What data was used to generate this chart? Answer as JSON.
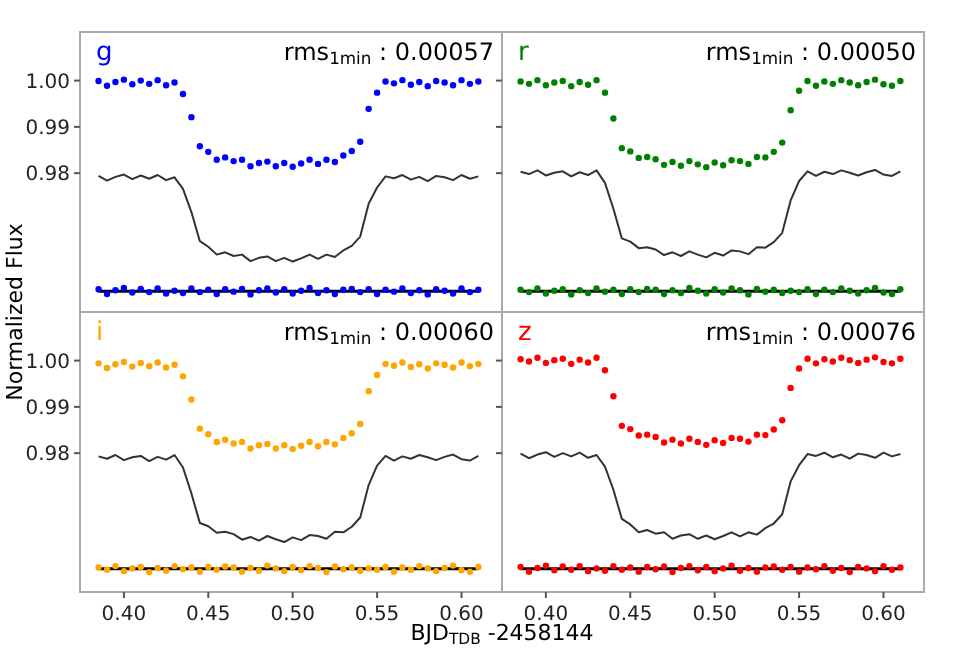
{
  "chart_data": [
    {
      "type": "scatter",
      "title": "g",
      "ylabel": "Normalized Flux",
      "annotations": [
        "rms$_{1min}$ : 0.00057"
      ],
      "xlim": [
        0.374,
        0.624
      ],
      "ylim": [
        0.95,
        1.0105
      ],
      "xticks": [
        {
          "value": 0.4,
          "label": null
        },
        {
          "value": 0.45,
          "label": null
        },
        {
          "value": 0.5,
          "label": null
        },
        {
          "value": 0.55,
          "label": null
        },
        {
          "value": 0.6,
          "label": null
        }
      ],
      "yticks": [
        {
          "value": 0.98,
          "label": "0.98"
        },
        {
          "value": 0.99,
          "label": "0.99"
        },
        {
          "value": 1.0,
          "label": "1.00"
        }
      ],
      "tick_labels": "y",
      "x": [
        0.385,
        0.39,
        0.395,
        0.4,
        0.405,
        0.41,
        0.415,
        0.42,
        0.425,
        0.43,
        0.435,
        0.44,
        0.445,
        0.45,
        0.455,
        0.46,
        0.465,
        0.47,
        0.475,
        0.48,
        0.485,
        0.49,
        0.495,
        0.5,
        0.505,
        0.51,
        0.515,
        0.52,
        0.525,
        0.53,
        0.535,
        0.54,
        0.545,
        0.55,
        0.555,
        0.56,
        0.565,
        0.57,
        0.575,
        0.58,
        0.585,
        0.59,
        0.595,
        0.6,
        0.605,
        0.61
      ],
      "ref_lines": [
        {
          "axis": "y",
          "value": 0.9545,
          "color": "#000000"
        }
      ],
      "series": [
        {
          "marker": "circle",
          "color": "#0000ff",
          "values": [
            0.9999,
            0.9989,
            0.9997,
            1.0002,
            0.9992,
            1.0,
            0.9993,
            1.0001,
            0.999,
            0.9996,
            0.9971,
            0.9921,
            0.9858,
            0.9846,
            0.9829,
            0.9834,
            0.9826,
            0.9829,
            0.9815,
            0.9822,
            0.9825,
            0.9815,
            0.9822,
            0.9814,
            0.9821,
            0.9829,
            0.982,
            0.9829,
            0.9824,
            0.9838,
            0.9848,
            0.9868,
            0.9939,
            0.9974,
            0.9998,
            0.9994,
            1.0001,
            0.9991,
            0.9997,
            0.9988,
            0.9999,
            0.9996,
            0.999,
            1.0001,
            0.9993,
            0.9998
          ]
        },
        {
          "type": "line",
          "color": "#333333",
          "values": [
            0.9794,
            0.9784,
            0.9792,
            0.9797,
            0.9787,
            0.9795,
            0.9788,
            0.9796,
            0.9785,
            0.9791,
            0.9766,
            0.9716,
            0.9653,
            0.9641,
            0.9624,
            0.9629,
            0.9621,
            0.9624,
            0.961,
            0.9617,
            0.962,
            0.961,
            0.9617,
            0.9609,
            0.9616,
            0.9624,
            0.9615,
            0.9624,
            0.9619,
            0.9633,
            0.9643,
            0.9663,
            0.9734,
            0.9769,
            0.9793,
            0.9789,
            0.9796,
            0.9786,
            0.9792,
            0.9783,
            0.9794,
            0.9791,
            0.9785,
            0.9796,
            0.9788,
            0.9793
          ]
        },
        {
          "marker": "circle",
          "color": "#0000ff",
          "values": [
            0.9549,
            0.9539,
            0.9547,
            0.9552,
            0.9542,
            0.955,
            0.9543,
            0.9551,
            0.954,
            0.9546,
            0.9541,
            0.9551,
            0.9543,
            0.9548,
            0.9539,
            0.9549,
            0.9544,
            0.955,
            0.9538,
            0.9547,
            0.9551,
            0.9542,
            0.9549,
            0.954,
            0.9546,
            0.9552,
            0.9541,
            0.9547,
            0.9539,
            0.9548,
            0.955,
            0.9543,
            0.9549,
            0.9539,
            0.9548,
            0.9544,
            0.9551,
            0.9541,
            0.9547,
            0.9538,
            0.9549,
            0.9546,
            0.954,
            0.9551,
            0.9543,
            0.9548
          ]
        }
      ]
    },
    {
      "type": "scatter",
      "title": "r",
      "annotations": [
        "rms$_{1min}$ : 0.00050"
      ],
      "xlim": [
        0.374,
        0.624
      ],
      "ylim": [
        0.95,
        1.0105
      ],
      "xticks": [
        {
          "value": 0.4,
          "label": null
        },
        {
          "value": 0.45,
          "label": null
        },
        {
          "value": 0.5,
          "label": null
        },
        {
          "value": 0.55,
          "label": null
        },
        {
          "value": 0.6,
          "label": null
        }
      ],
      "yticks": [
        {
          "value": 0.98,
          "label": null
        },
        {
          "value": 0.99,
          "label": null
        },
        {
          "value": 1.0,
          "label": null
        }
      ],
      "tick_labels": false,
      "x": [
        0.385,
        0.39,
        0.395,
        0.4,
        0.405,
        0.41,
        0.415,
        0.42,
        0.425,
        0.43,
        0.435,
        0.44,
        0.445,
        0.45,
        0.455,
        0.46,
        0.465,
        0.47,
        0.475,
        0.48,
        0.485,
        0.49,
        0.495,
        0.5,
        0.505,
        0.51,
        0.515,
        0.52,
        0.525,
        0.53,
        0.535,
        0.54,
        0.545,
        0.55,
        0.555,
        0.56,
        0.565,
        0.57,
        0.575,
        0.58,
        0.585,
        0.59,
        0.595,
        0.6,
        0.605,
        0.61
      ],
      "ref_lines": [
        {
          "axis": "y",
          "value": 0.9545,
          "color": "#000000"
        }
      ],
      "series": [
        {
          "marker": "circle",
          "color": "#008000",
          "values": [
            0.9998,
            0.9993,
            1.0001,
            0.999,
            0.9996,
            0.9999,
            0.9988,
            0.9997,
            0.9991,
            1.0001,
            0.9974,
            0.9918,
            0.9854,
            0.9847,
            0.9833,
            0.9835,
            0.983,
            0.9818,
            0.9824,
            0.9816,
            0.9826,
            0.9819,
            0.9813,
            0.9823,
            0.9817,
            0.9828,
            0.9826,
            0.982,
            0.9835,
            0.9834,
            0.9846,
            0.9866,
            0.9936,
            0.9978,
            0.9999,
            0.9989,
            0.9998,
            0.9993,
            1.0001,
            0.9996,
            0.999,
            0.9997,
            1.0002,
            0.9992,
            0.9989,
            0.9999
          ]
        },
        {
          "type": "line",
          "color": "#333333",
          "values": [
            0.9803,
            0.9798,
            0.9806,
            0.9795,
            0.9801,
            0.9804,
            0.9793,
            0.9802,
            0.9796,
            0.9806,
            0.9779,
            0.9723,
            0.9659,
            0.9652,
            0.9638,
            0.964,
            0.9635,
            0.9623,
            0.9629,
            0.9621,
            0.9631,
            0.9624,
            0.9618,
            0.9628,
            0.9622,
            0.9633,
            0.9631,
            0.9625,
            0.964,
            0.9639,
            0.9651,
            0.9671,
            0.9741,
            0.9783,
            0.9804,
            0.9794,
            0.9803,
            0.9798,
            0.9806,
            0.9801,
            0.9795,
            0.9802,
            0.9807,
            0.9797,
            0.9794,
            0.9804
          ]
        },
        {
          "marker": "circle",
          "color": "#008000",
          "values": [
            0.9548,
            0.9543,
            0.9551,
            0.954,
            0.9546,
            0.9549,
            0.9538,
            0.9547,
            0.9541,
            0.9551,
            0.9544,
            0.9548,
            0.9539,
            0.9549,
            0.9543,
            0.955,
            0.9548,
            0.9539,
            0.9547,
            0.9541,
            0.9552,
            0.9546,
            0.954,
            0.9549,
            0.9542,
            0.9551,
            0.9547,
            0.9538,
            0.955,
            0.9544,
            0.9548,
            0.9541,
            0.9546,
            0.9543,
            0.9549,
            0.9539,
            0.9548,
            0.9543,
            0.9551,
            0.9546,
            0.954,
            0.9547,
            0.9552,
            0.9542,
            0.9539,
            0.9549
          ]
        }
      ]
    },
    {
      "type": "scatter",
      "title": "i",
      "xlabel": "BJD$_{TDB}$-2458144",
      "annotations": [
        "rms$_{1min}$ : 0.00060"
      ],
      "xlim": [
        0.374,
        0.624
      ],
      "ylim": [
        0.95,
        1.0105
      ],
      "xticks": [
        {
          "value": 0.4,
          "label": "0.40"
        },
        {
          "value": 0.45,
          "label": "0.45"
        },
        {
          "value": 0.5,
          "label": "0.50"
        },
        {
          "value": 0.55,
          "label": "0.55"
        },
        {
          "value": 0.6,
          "label": "0.60"
        }
      ],
      "yticks": [
        {
          "value": 0.98,
          "label": "0.98"
        },
        {
          "value": 0.99,
          "label": "0.99"
        },
        {
          "value": 1.0,
          "label": "1.00"
        }
      ],
      "x": [
        0.385,
        0.39,
        0.395,
        0.4,
        0.405,
        0.41,
        0.415,
        0.42,
        0.425,
        0.43,
        0.435,
        0.44,
        0.445,
        0.45,
        0.455,
        0.46,
        0.465,
        0.47,
        0.475,
        0.48,
        0.485,
        0.49,
        0.495,
        0.5,
        0.505,
        0.51,
        0.515,
        0.52,
        0.525,
        0.53,
        0.535,
        0.54,
        0.545,
        0.55,
        0.555,
        0.56,
        0.565,
        0.57,
        0.575,
        0.58,
        0.585,
        0.59,
        0.595,
        0.6,
        0.605,
        0.61
      ],
      "ref_lines": [
        {
          "axis": "y",
          "value": 0.955,
          "color": "#000000"
        }
      ],
      "series": [
        {
          "marker": "circle",
          "color": "#ffa500",
          "values": [
            0.9994,
            0.9984,
            0.9992,
            0.9997,
            0.9987,
            0.9995,
            0.9988,
            0.9996,
            0.9985,
            0.9991,
            0.9966,
            0.9916,
            0.9853,
            0.9841,
            0.9824,
            0.9829,
            0.9821,
            0.9824,
            0.981,
            0.9817,
            0.982,
            0.981,
            0.9817,
            0.9809,
            0.9816,
            0.9824,
            0.9815,
            0.9824,
            0.9819,
            0.9833,
            0.9843,
            0.9863,
            0.9934,
            0.9969,
            0.9993,
            0.9989,
            0.9996,
            0.9986,
            0.9992,
            0.9983,
            0.9994,
            0.9991,
            0.9985,
            0.9996,
            0.9988,
            0.9993
          ]
        },
        {
          "type": "line",
          "color": "#333333",
          "values": [
            0.9793,
            0.9788,
            0.9796,
            0.9785,
            0.9791,
            0.9794,
            0.9783,
            0.9792,
            0.9786,
            0.9796,
            0.9769,
            0.9713,
            0.9649,
            0.9642,
            0.9628,
            0.963,
            0.9625,
            0.9613,
            0.9619,
            0.9611,
            0.9621,
            0.9614,
            0.9608,
            0.9618,
            0.9612,
            0.9623,
            0.9621,
            0.9615,
            0.963,
            0.9629,
            0.9641,
            0.9661,
            0.9731,
            0.9773,
            0.9794,
            0.9784,
            0.9793,
            0.9788,
            0.9796,
            0.9791,
            0.9785,
            0.9792,
            0.9797,
            0.9787,
            0.9784,
            0.9794
          ]
        },
        {
          "marker": "circle",
          "color": "#ffa500",
          "values": [
            0.9553,
            0.9548,
            0.9556,
            0.9545,
            0.9551,
            0.9554,
            0.9543,
            0.9552,
            0.9546,
            0.9556,
            0.9549,
            0.9553,
            0.9544,
            0.9554,
            0.9548,
            0.9555,
            0.9553,
            0.9544,
            0.9552,
            0.9546,
            0.9557,
            0.9551,
            0.9545,
            0.9554,
            0.9547,
            0.9556,
            0.9552,
            0.9543,
            0.9555,
            0.9549,
            0.9553,
            0.9546,
            0.9551,
            0.9548,
            0.9554,
            0.9544,
            0.9553,
            0.9548,
            0.9556,
            0.9551,
            0.9545,
            0.9552,
            0.9557,
            0.9547,
            0.9544,
            0.9554
          ]
        }
      ]
    },
    {
      "type": "scatter",
      "title": "z",
      "annotations": [
        "rms$_{1min}$ : 0.00076"
      ],
      "xlim": [
        0.374,
        0.624
      ],
      "ylim": [
        0.95,
        1.0105
      ],
      "xticks": [
        {
          "value": 0.4,
          "label": "0.40"
        },
        {
          "value": 0.45,
          "label": "0.45"
        },
        {
          "value": 0.5,
          "label": "0.50"
        },
        {
          "value": 0.55,
          "label": "0.55"
        },
        {
          "value": 0.6,
          "label": "0.60"
        }
      ],
      "yticks": [
        {
          "value": 0.98,
          "label": null
        },
        {
          "value": 0.99,
          "label": null
        },
        {
          "value": 1.0,
          "label": null
        }
      ],
      "tick_labels": "x",
      "x": [
        0.385,
        0.39,
        0.395,
        0.4,
        0.405,
        0.41,
        0.415,
        0.42,
        0.425,
        0.43,
        0.435,
        0.44,
        0.445,
        0.45,
        0.455,
        0.46,
        0.465,
        0.47,
        0.475,
        0.48,
        0.485,
        0.49,
        0.495,
        0.5,
        0.505,
        0.51,
        0.515,
        0.52,
        0.525,
        0.53,
        0.535,
        0.54,
        0.545,
        0.55,
        0.555,
        0.56,
        0.565,
        0.57,
        0.575,
        0.58,
        0.585,
        0.59,
        0.595,
        0.6,
        0.605,
        0.61
      ],
      "ref_lines": [
        {
          "axis": "y",
          "value": 0.955,
          "color": "#000000"
        }
      ],
      "series": [
        {
          "marker": "circle",
          "color": "#ff0000",
          "values": [
            1.0003,
            0.9998,
            1.0006,
            0.9995,
            1.0001,
            1.0004,
            0.9993,
            1.0002,
            0.9996,
            1.0006,
            0.9979,
            0.9923,
            0.9859,
            0.9852,
            0.9838,
            0.984,
            0.9835,
            0.9823,
            0.9829,
            0.9821,
            0.9831,
            0.9824,
            0.9818,
            0.9828,
            0.9822,
            0.9833,
            0.9831,
            0.9825,
            0.984,
            0.9839,
            0.9851,
            0.9871,
            0.9941,
            0.9983,
            1.0004,
            0.9994,
            1.0003,
            0.9998,
            1.0006,
            1.0001,
            0.9995,
            1.0002,
            1.0007,
            0.9997,
            0.9994,
            1.0004
          ]
        },
        {
          "type": "line",
          "color": "#333333",
          "values": [
            0.9799,
            0.9789,
            0.9797,
            0.9802,
            0.9792,
            0.98,
            0.9793,
            0.9801,
            0.979,
            0.9796,
            0.9771,
            0.9721,
            0.9658,
            0.9646,
            0.9629,
            0.9634,
            0.9626,
            0.9629,
            0.9615,
            0.9622,
            0.9625,
            0.9615,
            0.9622,
            0.9614,
            0.9621,
            0.9629,
            0.962,
            0.9629,
            0.9624,
            0.9638,
            0.9648,
            0.9668,
            0.9739,
            0.9774,
            0.9798,
            0.9794,
            0.9801,
            0.9791,
            0.9797,
            0.9788,
            0.9799,
            0.9796,
            0.979,
            0.9801,
            0.9793,
            0.9798
          ]
        },
        {
          "marker": "circle",
          "color": "#ff0000",
          "values": [
            0.9554,
            0.9544,
            0.9552,
            0.9557,
            0.9547,
            0.9555,
            0.9548,
            0.9556,
            0.9545,
            0.9551,
            0.9546,
            0.9556,
            0.9548,
            0.9553,
            0.9544,
            0.9554,
            0.9549,
            0.9555,
            0.9543,
            0.9552,
            0.9556,
            0.9547,
            0.9554,
            0.9545,
            0.9551,
            0.9557,
            0.9546,
            0.9552,
            0.9544,
            0.9553,
            0.9555,
            0.9548,
            0.9554,
            0.9544,
            0.9553,
            0.9549,
            0.9556,
            0.9546,
            0.9552,
            0.9543,
            0.9554,
            0.9551,
            0.9545,
            0.9556,
            0.9548,
            0.9553
          ]
        }
      ]
    }
  ]
}
